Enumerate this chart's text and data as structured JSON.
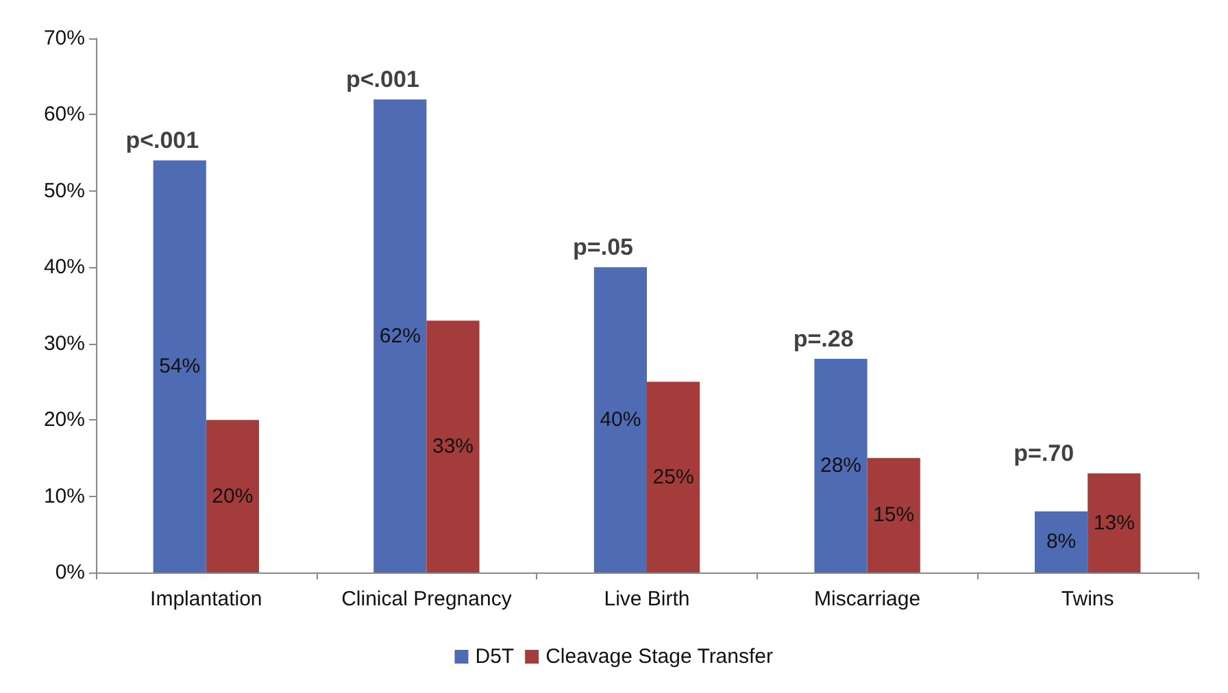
{
  "chart_data": {
    "type": "bar",
    "categories": [
      "Implantation",
      "Clinical Pregnancy",
      "Live Birth",
      "Miscarriage",
      "Twins"
    ],
    "series": [
      {
        "name": "D5T",
        "color": "#4f6bb4",
        "values": [
          54,
          62,
          40,
          28,
          8
        ],
        "value_labels": [
          "54%",
          "62%",
          "40%",
          "28%",
          "8%"
        ]
      },
      {
        "name": "Cleavage Stage Transfer",
        "color": "#a33c3a",
        "values": [
          20,
          33,
          25,
          15,
          13
        ],
        "value_labels": [
          "20%",
          "33%",
          "25%",
          "15%",
          "13%"
        ]
      }
    ],
    "ylim": [
      0,
      70
    ],
    "yticks": [
      {
        "value": 0,
        "label": "0%"
      },
      {
        "value": 10,
        "label": "10%"
      },
      {
        "value": 20,
        "label": "20%"
      },
      {
        "value": 30,
        "label": "30%"
      },
      {
        "value": 40,
        "label": "40%"
      },
      {
        "value": 50,
        "label": "50%"
      },
      {
        "value": 60,
        "label": "60%"
      },
      {
        "value": 70,
        "label": "70%"
      }
    ],
    "annotations": [
      {
        "text": "p<.001",
        "x": "Implantation",
        "y": 54
      },
      {
        "text": "p<.001",
        "x": "Clinical Pregnancy",
        "y": 62
      },
      {
        "text": "p=.05",
        "x": "Live Birth",
        "y": 40
      },
      {
        "text": "p=.28",
        "x": "Miscarriage",
        "y": 28
      },
      {
        "text": "p=.70",
        "x": "Twins",
        "y": 13
      }
    ],
    "grid": false,
    "legend": "bottom"
  }
}
